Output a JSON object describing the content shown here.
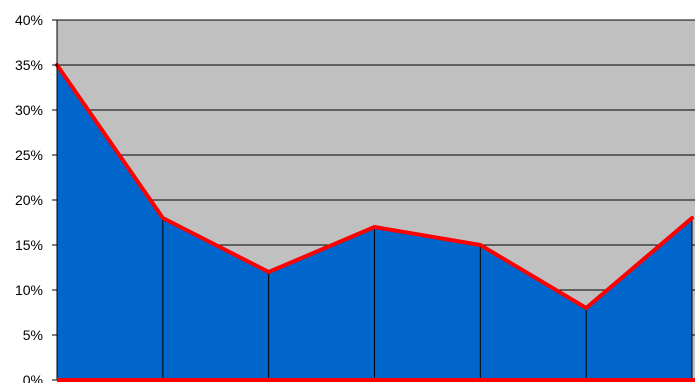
{
  "chart_data": {
    "type": "area",
    "title": "",
    "xlabel": "",
    "ylabel": "",
    "ylim": [
      0,
      40
    ],
    "y_tick_labels": [
      "0%",
      "5%",
      "10%",
      "15%",
      "20%",
      "25%",
      "30%",
      "35%",
      "40%"
    ],
    "y_ticks": [
      0,
      5,
      10,
      15,
      20,
      25,
      30,
      35,
      40
    ],
    "x": [
      0,
      1,
      2,
      3,
      4,
      5,
      6
    ],
    "values": [
      35,
      18,
      12,
      17,
      15,
      8,
      18
    ],
    "grid": true,
    "legend": "none",
    "colors": {
      "plot_background": "#c0c0c0",
      "area_fill": "#0066cc",
      "line": "#ff0000",
      "gridline": "#000000",
      "axis": "#000000"
    }
  }
}
